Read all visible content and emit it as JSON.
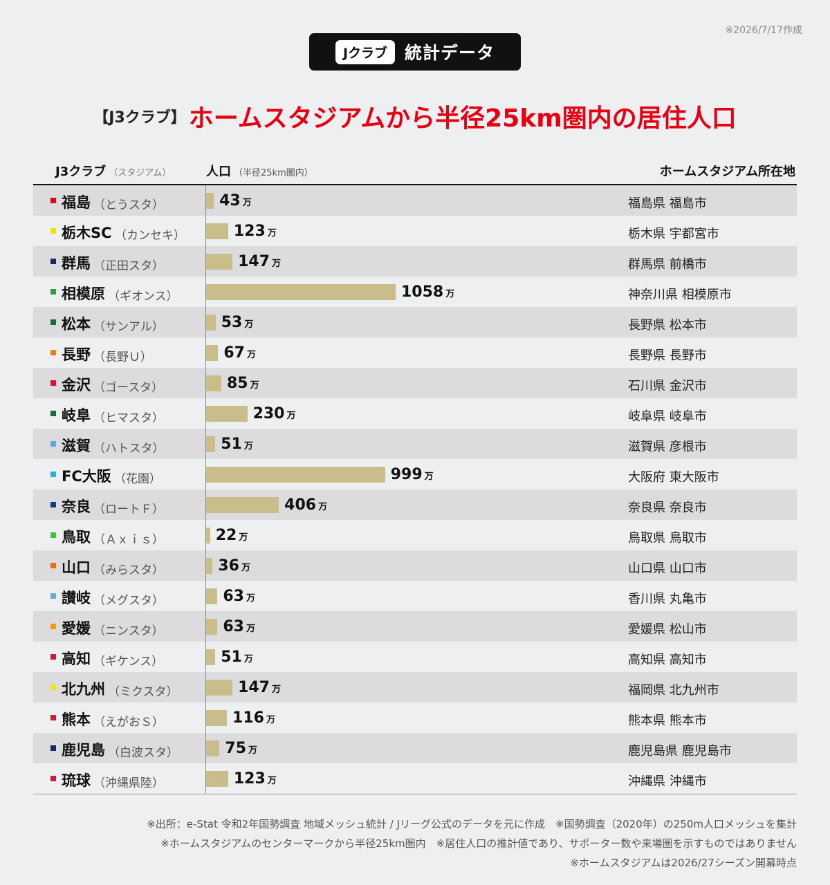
{
  "date_note": "※2026/7/17作成",
  "badge": {
    "pill": "Jクラブ",
    "text": "統計データ"
  },
  "title": {
    "prefix": "【J3クラブ】",
    "main": "ホームスタジアムから半径25km圏内の居住人口"
  },
  "columns": {
    "club": "J3クラブ",
    "club_sub": "（スタジアム）",
    "population": "人口",
    "population_sub": "（半径25km圏内）",
    "location": "ホームスタジアム所在地"
  },
  "unit_label": "万",
  "chart_data": {
    "type": "bar",
    "orientation": "horizontal",
    "xlabel": "人口（半径25km圏内）",
    "unit": "万",
    "xlim": [
      0,
      1058
    ],
    "categories": [
      "福島",
      "栃木SC",
      "群馬",
      "相模原",
      "松本",
      "長野",
      "金沢",
      "岐阜",
      "滋賀",
      "FC大阪",
      "奈良",
      "鳥取",
      "山口",
      "讃岐",
      "愛媛",
      "高知",
      "北九州",
      "熊本",
      "鹿児島",
      "琉球"
    ],
    "values": [
      43,
      123,
      147,
      1058,
      53,
      67,
      85,
      230,
      51,
      999,
      406,
      22,
      36,
      63,
      63,
      51,
      147,
      116,
      75,
      123
    ],
    "bar_color": "#c9bd8b"
  },
  "rows": [
    {
      "club": "福島",
      "stadium": "（とうスタ）",
      "value": "43",
      "location": "福島県 福島市",
      "color": "#e60012"
    },
    {
      "club": "栃木SC",
      "stadium": "（カンセキ）",
      "value": "123",
      "location": "栃木県 宇都宮市",
      "color": "#f5e400"
    },
    {
      "club": "群馬",
      "stadium": "（正田スタ）",
      "value": "147",
      "location": "群馬県 前橋市",
      "color": "#1b2a5e"
    },
    {
      "club": "相模原",
      "stadium": "（ギオンス）",
      "value": "1058",
      "location": "神奈川県 相模原市",
      "color": "#2e9e4a"
    },
    {
      "club": "松本",
      "stadium": "（サンアル）",
      "value": "53",
      "location": "長野県 松本市",
      "color": "#1f6b35"
    },
    {
      "club": "長野",
      "stadium": "（長野Ｕ）",
      "value": "67",
      "location": "長野県 長野市",
      "color": "#f07c1a"
    },
    {
      "club": "金沢",
      "stadium": "（ゴースタ）",
      "value": "85",
      "location": "石川県 金沢市",
      "color": "#d7132b"
    },
    {
      "club": "岐阜",
      "stadium": "（ヒマスタ）",
      "value": "230",
      "location": "岐阜県 岐阜市",
      "color": "#1f6b35"
    },
    {
      "club": "滋賀",
      "stadium": "（ハトスタ）",
      "value": "51",
      "location": "滋賀県 彦根市",
      "color": "#5aa7dc"
    },
    {
      "club": "FC大阪",
      "stadium": "（花園）",
      "value": "999",
      "location": "大阪府 東大阪市",
      "color": "#31aee0"
    },
    {
      "club": "奈良",
      "stadium": "（ロートＦ）",
      "value": "406",
      "location": "奈良県 奈良市",
      "color": "#133e7c"
    },
    {
      "club": "鳥取",
      "stadium": "（Ａｘｉｓ）",
      "value": "22",
      "location": "鳥取県 鳥取市",
      "color": "#3ec43a"
    },
    {
      "club": "山口",
      "stadium": "（みらスタ）",
      "value": "36",
      "location": "山口県 山口市",
      "color": "#ef6a12"
    },
    {
      "club": "讃岐",
      "stadium": "（メグスタ）",
      "value": "63",
      "location": "香川県 丸亀市",
      "color": "#6da8d8"
    },
    {
      "club": "愛媛",
      "stadium": "（ニンスタ）",
      "value": "63",
      "location": "愛媛県 松山市",
      "color": "#f39a12"
    },
    {
      "club": "高知",
      "stadium": "（ギケンス）",
      "value": "51",
      "location": "高知県 高知市",
      "color": "#c8202f"
    },
    {
      "club": "北九州",
      "stadium": "（ミクスタ）",
      "value": "147",
      "location": "福岡県 北九州市",
      "color": "#f7e21a"
    },
    {
      "club": "熊本",
      "stadium": "（えがおＳ）",
      "value": "116",
      "location": "熊本県 熊本市",
      "color": "#c8202f"
    },
    {
      "club": "鹿児島",
      "stadium": "（白波スタ）",
      "value": "75",
      "location": "鹿児島県 鹿児島市",
      "color": "#1b2a5e"
    },
    {
      "club": "琉球",
      "stadium": "（沖縄県陸）",
      "value": "123",
      "location": "沖縄県 沖縄市",
      "color": "#c8202f"
    }
  ],
  "footnotes": [
    "※出所：e-Stat 令和2年国勢調査 地域メッシュ統計 / Jリーグ公式のデータを元に作成　※国勢調査（2020年）の250m人口メッシュを集計",
    "※ホームスタジアムのセンターマークから半径25km圏内　※居住人口の推計値であり、サポーター数や来場圏を示すものではありません",
    "※ホームスタジアムは2026/27シーズン開幕時点"
  ]
}
